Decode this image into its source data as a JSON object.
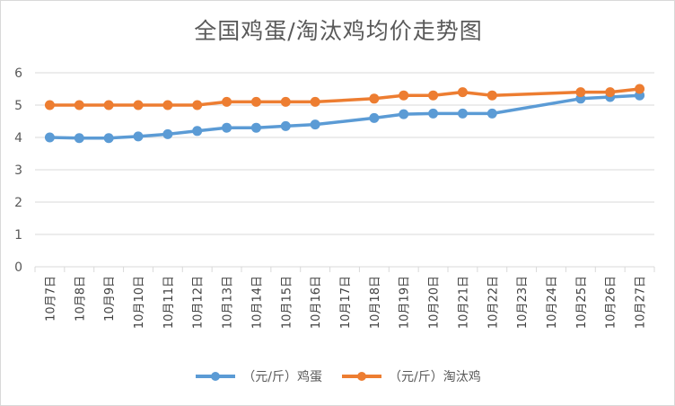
{
  "chart_data": {
    "type": "line",
    "title": "全国鸡蛋/淘汰鸡均价走势图",
    "categories": [
      "10月7日",
      "10月8日",
      "10月9日",
      "10月10日",
      "10月11日",
      "10月12日",
      "10月13日",
      "10月14日",
      "10月15日",
      "10月16日",
      "10月17日",
      "10月18日",
      "10月19日",
      "10月20日",
      "10月21日",
      "10月22日",
      "10月23日",
      "10月24日",
      "10月25日",
      "10月26日",
      "10月27日"
    ],
    "series": [
      {
        "name": "（元/斤）鸡蛋",
        "color": "#5b9bd5",
        "values": [
          4.0,
          3.98,
          3.98,
          4.03,
          4.1,
          4.2,
          4.3,
          4.3,
          4.35,
          4.4,
          null,
          4.6,
          4.72,
          4.74,
          4.74,
          4.74,
          null,
          null,
          5.2,
          5.25,
          5.3
        ]
      },
      {
        "name": "（元/斤）淘汰鸡",
        "color": "#ed7d31",
        "values": [
          5.0,
          5.0,
          5.0,
          5.0,
          5.0,
          5.0,
          5.1,
          5.1,
          5.1,
          5.1,
          null,
          5.2,
          5.3,
          5.3,
          5.4,
          5.3,
          null,
          null,
          5.4,
          5.4,
          5.5
        ]
      }
    ],
    "yticks": [
      0,
      1,
      2,
      3,
      4,
      5,
      6
    ],
    "ylim": [
      0,
      6
    ],
    "grid": true,
    "legend": "bottom"
  }
}
